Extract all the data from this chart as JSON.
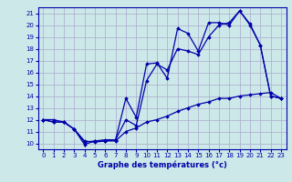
{
  "xlabel": "Graphe des températures (°c)",
  "background_color": "#cce8e8",
  "grid_color": "#aaaacc",
  "line_color": "#0000aa",
  "xlim": [
    -0.5,
    23.5
  ],
  "ylim": [
    9.5,
    21.5
  ],
  "xticks": [
    0,
    1,
    2,
    3,
    4,
    5,
    6,
    7,
    8,
    9,
    10,
    11,
    12,
    13,
    14,
    15,
    16,
    17,
    18,
    19,
    20,
    21,
    22,
    23
  ],
  "yticks": [
    10,
    11,
    12,
    13,
    14,
    15,
    16,
    17,
    18,
    19,
    20,
    21
  ],
  "series1_x": [
    0,
    1,
    2,
    3,
    4,
    5,
    6,
    7,
    8,
    9,
    10,
    11,
    12,
    13,
    14,
    15,
    16,
    17,
    18,
    19,
    20,
    21,
    22,
    23
  ],
  "series1_y": [
    12,
    11.8,
    11.8,
    11.2,
    10.2,
    10.1,
    10.2,
    10.3,
    13.8,
    12.2,
    16.7,
    16.8,
    15.5,
    19.7,
    19.3,
    17.8,
    20.2,
    20.2,
    20.0,
    21.2,
    20.1,
    18.3,
    14.0,
    13.8
  ],
  "series2_x": [
    0,
    1,
    2,
    3,
    4,
    5,
    6,
    7,
    8,
    9,
    10,
    11,
    12,
    13,
    14,
    15,
    16,
    17,
    18,
    19,
    20,
    21,
    22,
    23
  ],
  "series2_y": [
    12,
    11.8,
    11.8,
    11.2,
    10.1,
    10.2,
    10.3,
    10.3,
    12.0,
    11.5,
    15.3,
    16.7,
    16.2,
    18.0,
    17.8,
    17.5,
    19.0,
    20.0,
    20.2,
    21.2,
    20.0,
    18.3,
    14.0,
    13.8
  ],
  "series3_x": [
    0,
    1,
    2,
    3,
    4,
    5,
    6,
    7,
    8,
    9,
    10,
    11,
    12,
    13,
    14,
    15,
    16,
    17,
    18,
    19,
    20,
    21,
    22,
    23
  ],
  "series3_y": [
    12.0,
    12.0,
    11.8,
    11.2,
    9.9,
    10.2,
    10.2,
    10.2,
    11.0,
    11.3,
    11.8,
    12.0,
    12.3,
    12.7,
    13.0,
    13.3,
    13.5,
    13.8,
    13.8,
    14.0,
    14.1,
    14.2,
    14.3,
    13.8
  ],
  "tick_fontsize": 5,
  "xlabel_fontsize": 6
}
